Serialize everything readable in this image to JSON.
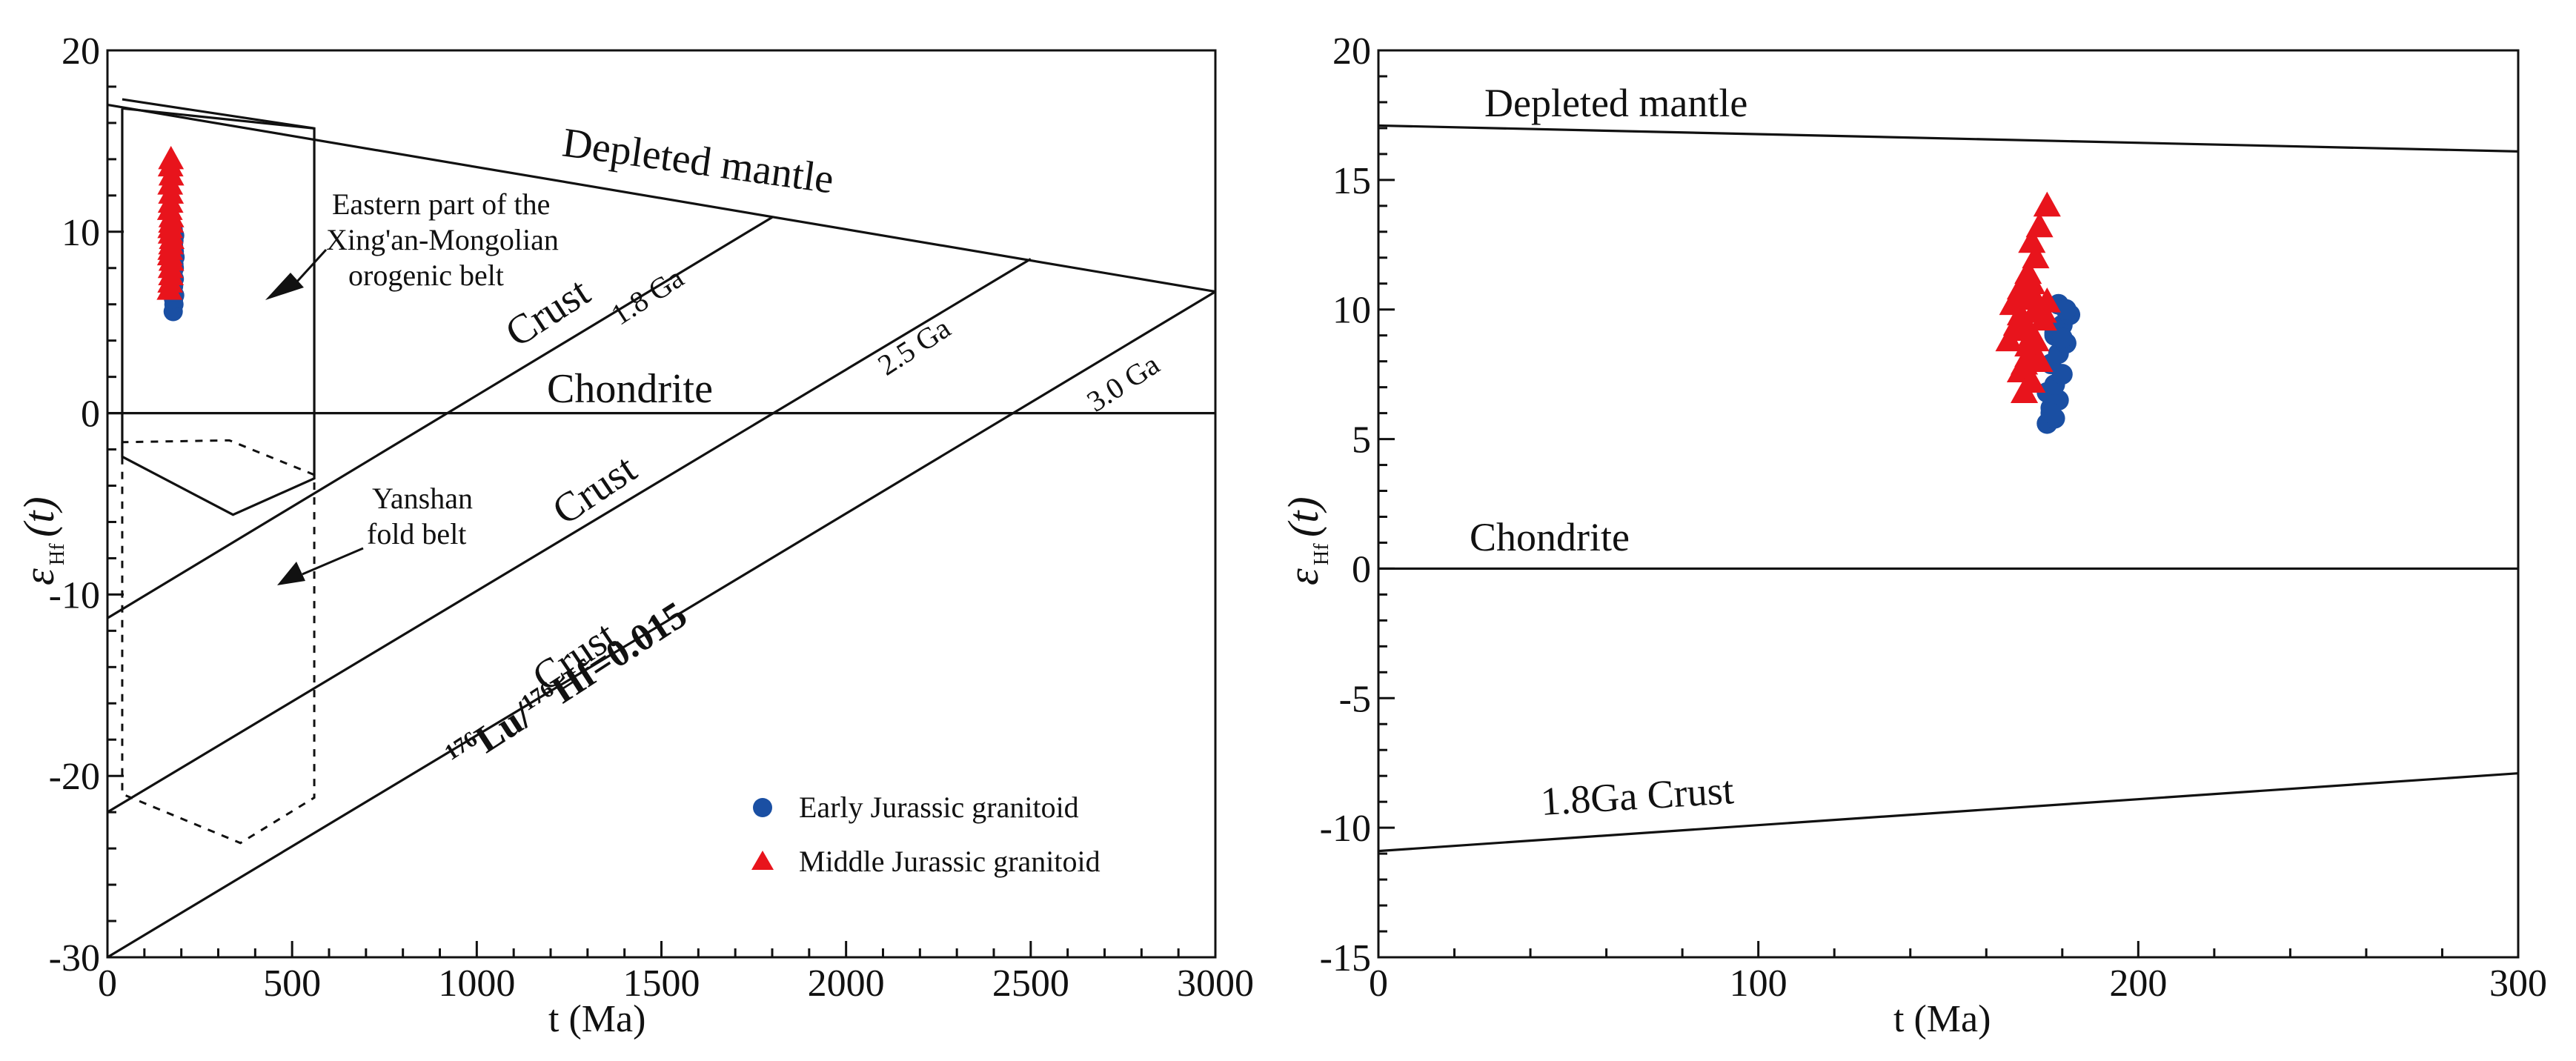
{
  "chart_data": [
    {
      "type": "scatter",
      "panel": "left",
      "xlabel": "t (Ma)",
      "ylabel_main": "ε",
      "ylabel_sub": "Hf",
      "ylabel_tail": "(t)",
      "xlim": [
        0,
        3000
      ],
      "ylim": [
        -30,
        20
      ],
      "xticks": [
        0,
        500,
        1000,
        1500,
        2000,
        2500,
        3000
      ],
      "xtick_labels": [
        "0",
        "500",
        "1000",
        "1500",
        "2000",
        "2500",
        "3000"
      ],
      "yticks": [
        -30,
        -20,
        -10,
        0,
        10,
        20
      ],
      "ytick_labels": [
        "-30",
        "-20",
        "-10",
        "0",
        "10",
        "20"
      ],
      "lines": [
        {
          "name": "Depleted mantle",
          "x": [
            0,
            3000
          ],
          "y": [
            17,
            6.7
          ]
        },
        {
          "name": "Chondrite",
          "x": [
            0,
            3000
          ],
          "y": [
            0,
            0
          ]
        },
        {
          "name": "1.8 Ga crust",
          "x": [
            0,
            1800
          ],
          "y": [
            -11.3,
            10.8
          ]
        },
        {
          "name": "2.5 Ga crust",
          "x": [
            0,
            2500
          ],
          "y": [
            -22,
            8.5
          ]
        },
        {
          "name": "3.0 Ga crust",
          "x": [
            0,
            3000
          ],
          "y": [
            -30,
            6.7
          ]
        }
      ],
      "regions": [
        {
          "name": "Eastern part of the Xing'an-Mongolian orogenic belt",
          "style": "solid",
          "x": [
            40,
            40,
            340,
            560,
            560,
            40
          ],
          "y": [
            16.8,
            -2.4,
            -5.6,
            -3.6,
            15.7,
            16.8
          ]
        },
        {
          "name": "Yanshan fold belt",
          "style": "dashed",
          "x": [
            40,
            40,
            360,
            560,
            560,
            330,
            40
          ],
          "y": [
            -1.6,
            -21,
            -23.7,
            -21.2,
            -3.4,
            -1.5,
            -1.6
          ]
        }
      ],
      "extra_box": {
        "x": [
          40,
          560
        ],
        "y": [
          17.3,
          15.7
        ]
      },
      "labels": {
        "depleted_mantle": "Depleted mantle",
        "chondrite": "Chondrite",
        "crust": "Crust",
        "ga_18": "1.8 Ga",
        "ga_25": "2.5 Ga",
        "ga_30": "3.0 Ga",
        "xing1": "Eastern part of the",
        "xing2": "Xing'an-Mongolian",
        "xing3": "orogenic belt",
        "yan1": "Yanshan",
        "yan2": "fold belt",
        "lu_sup1": "176",
        "lu_text": "Lu/",
        "lu_sup2": "176",
        "hf_text": "Hf=0.015"
      },
      "legend": [
        {
          "label": "Early Jurassic granitoid",
          "marker": "circle",
          "color": "#1a4fa3"
        },
        {
          "label": "Middle Jurassic granitoid",
          "marker": "triangle",
          "color": "#e8141c"
        }
      ],
      "series": [
        {
          "name": "Early Jurassic granitoid",
          "marker": "circle",
          "color": "#1a4fa3",
          "x": [
            178,
            180,
            182,
            179,
            181,
            178,
            180,
            183,
            181,
            179,
            180,
            182,
            178,
            179,
            181,
            180
          ],
          "y": [
            5.6,
            6.0,
            6.5,
            7.0,
            7.4,
            7.8,
            8.2,
            8.6,
            8.9,
            9.2,
            9.5,
            9.8,
            10.1,
            6.3,
            8.0,
            9.0
          ]
        },
        {
          "name": "Middle Jurassic granitoid",
          "marker": "triangle",
          "color": "#e8141c",
          "x": [
            168,
            170,
            172,
            171,
            173,
            169,
            170,
            172,
            174,
            171,
            170,
            172,
            173,
            169,
            171,
            172,
            170,
            173,
            171,
            172
          ],
          "y": [
            6.8,
            7.2,
            7.6,
            8.0,
            8.4,
            8.7,
            9.0,
            9.3,
            9.6,
            9.9,
            10.2,
            10.5,
            10.8,
            11.2,
            11.6,
            12.1,
            12.6,
            13.1,
            13.6,
            14.0
          ]
        }
      ]
    },
    {
      "type": "scatter",
      "panel": "right",
      "xlabel": "t (Ma)",
      "ylabel_main": "ε",
      "ylabel_sub": "Hf",
      "ylabel_tail": "(t)",
      "xlim": [
        0,
        300
      ],
      "ylim": [
        -15,
        20
      ],
      "xticks": [
        0,
        100,
        200,
        300
      ],
      "xtick_labels": [
        "0",
        "100",
        "200",
        "300"
      ],
      "yticks": [
        -15,
        -10,
        -5,
        0,
        5,
        10,
        15,
        20
      ],
      "ytick_labels": [
        "-15",
        "-10",
        "-5",
        "0",
        "5",
        "10",
        "15",
        "20"
      ],
      "lines": [
        {
          "name": "Depleted mantle",
          "x": [
            0,
            300
          ],
          "y": [
            17.1,
            16.1
          ]
        },
        {
          "name": "Chondrite",
          "x": [
            0,
            300
          ],
          "y": [
            0,
            0
          ]
        },
        {
          "name": "1.8Ga Crust",
          "x": [
            0,
            300
          ],
          "y": [
            -10.9,
            -7.9
          ]
        }
      ],
      "labels": {
        "depleted_mantle": "Depleted mantle",
        "chondrite": "Chondrite",
        "crust": "1.8Ga Crust"
      },
      "series": [
        {
          "name": "Early Jurassic granitoid",
          "marker": "circle",
          "color": "#1a4fa3",
          "x": [
            176,
            178,
            177,
            179,
            176,
            178,
            180,
            177,
            179,
            181,
            178,
            180,
            182,
            179,
            177,
            178,
            180,
            181
          ],
          "y": [
            5.6,
            5.8,
            6.2,
            6.5,
            6.8,
            7.1,
            7.5,
            7.9,
            8.3,
            8.7,
            9.0,
            9.4,
            9.8,
            10.2,
            6.0,
            9.1,
            8.9,
            10.0
          ]
        },
        {
          "name": "Middle Jurassic granitoid",
          "marker": "triangle",
          "color": "#e8141c",
          "x": [
            166,
            168,
            170,
            172,
            171,
            169,
            173,
            175,
            167,
            170,
            172,
            174,
            168,
            171,
            173,
            176,
            169,
            172,
            174,
            170,
            172,
            175,
            171,
            173,
            169,
            172,
            174,
            176,
            170
          ],
          "y": [
            8.8,
            9.2,
            9.5,
            9.0,
            8.6,
            9.8,
            10.0,
            9.6,
            10.2,
            10.4,
            10.6,
            10.1,
            9.4,
            8.2,
            8.8,
            10.3,
            7.6,
            7.2,
            8.0,
            6.8,
            11.0,
            9.9,
            11.4,
            12.0,
            10.8,
            12.6,
            13.2,
            14.0,
            7.9
          ]
        }
      ]
    }
  ]
}
